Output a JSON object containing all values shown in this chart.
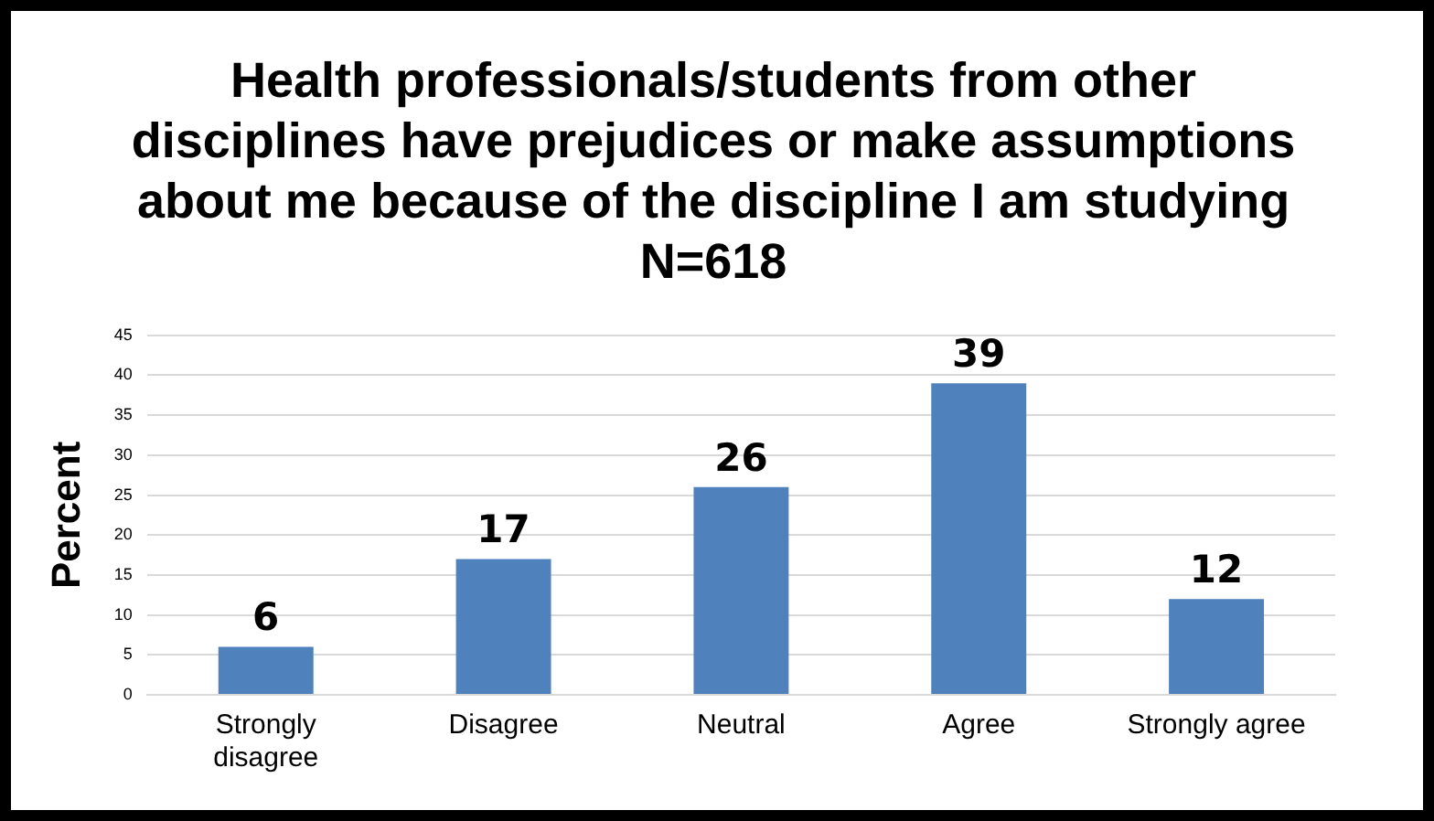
{
  "chart_data": {
    "type": "bar",
    "title": "Health professionals/students from other disciplines have prejudices or make assumptions about me because of the discipline I am studying N=618",
    "ylabel": "Percent",
    "categories": [
      "Strongly disagree",
      "Disagree",
      "Neutral",
      "Agree",
      "Strongly agree"
    ],
    "values": [
      6,
      17,
      26,
      39,
      12
    ],
    "color": "#4f81bd",
    "ylim": [
      0,
      45
    ],
    "yticks": [
      0,
      5,
      10,
      15,
      20,
      25,
      30,
      35,
      40,
      45
    ],
    "grid": "y",
    "data_labels": true,
    "legend": false
  }
}
